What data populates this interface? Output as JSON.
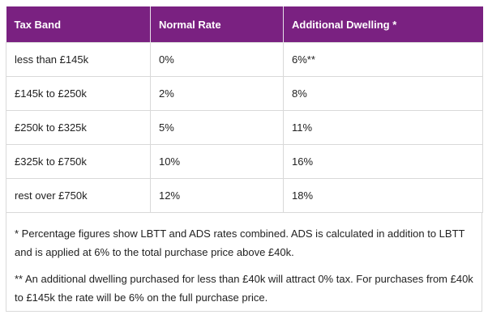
{
  "table": {
    "headers": [
      "Tax Band",
      "Normal Rate",
      "Additional Dwelling *"
    ],
    "rows": [
      [
        "less than £145k",
        "0%",
        "6%**"
      ],
      [
        "£145k to £250k",
        "2%",
        "8%"
      ],
      [
        "£250k to £325k",
        "5%",
        "11%"
      ],
      [
        "£325k to £750k",
        "10%",
        "16%"
      ],
      [
        "rest over £750k",
        "12%",
        "18%"
      ]
    ]
  },
  "notes": {
    "note1": "* Percentage figures show LBTT and ADS rates combined. ADS is calculated in addition to LBTT and is applied at 6% to the total purchase price above £40k.",
    "note2": "** An additional dwelling purchased for less than £40k will attract 0% tax. For purchases from £40k to £145k the rate will be 6% on the full purchase price."
  },
  "colors": {
    "header_bg": "#7a2181",
    "header_text": "#ffffff",
    "border": "#d9d9d9"
  }
}
